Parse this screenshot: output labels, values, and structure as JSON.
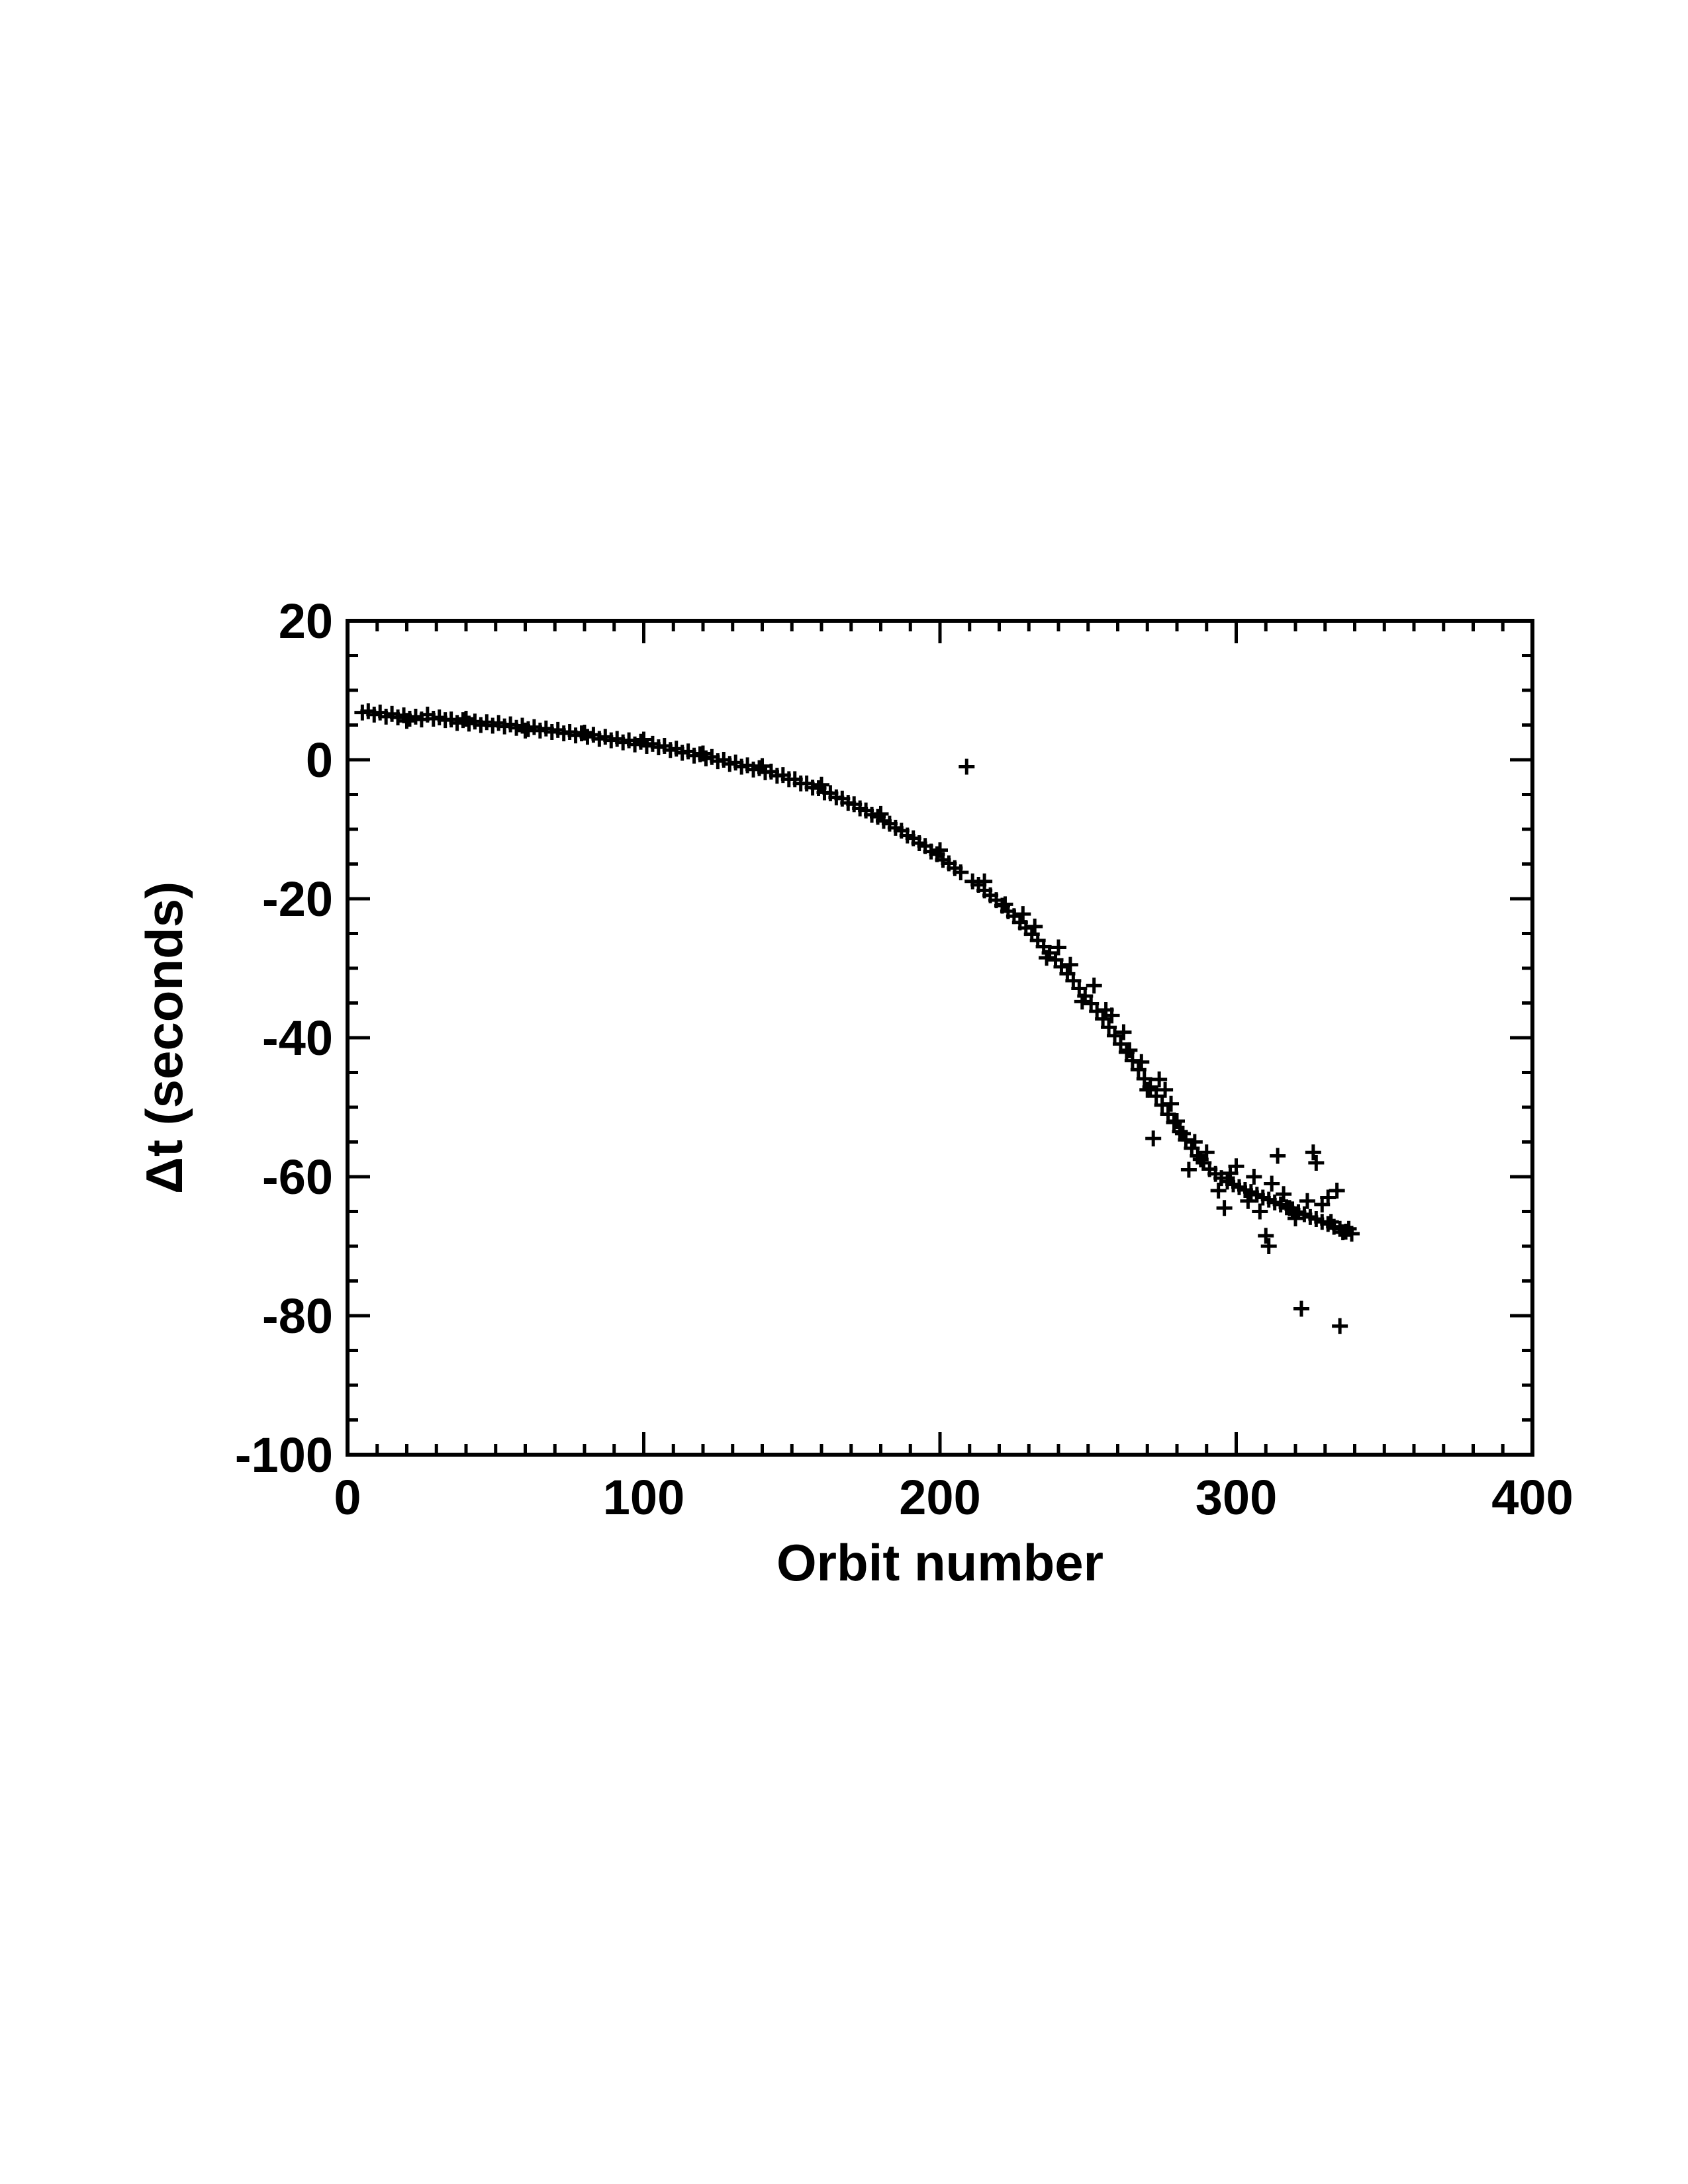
{
  "chart_data": {
    "type": "scatter",
    "title": "",
    "xlabel": "Orbit number",
    "ylabel": "Δt (seconds)",
    "xlim": [
      0,
      400
    ],
    "ylim": [
      -100,
      20
    ],
    "x_ticks": [
      0,
      100,
      200,
      300,
      400
    ],
    "x_tick_labels": [
      "0",
      "100",
      "200",
      "300",
      "400"
    ],
    "y_ticks": [
      20,
      0,
      -20,
      -40,
      -60,
      -80,
      -100
    ],
    "y_tick_labels": [
      "20",
      "0",
      "-20",
      "-40",
      "-60",
      "-80",
      "-100"
    ],
    "x_minor_step": 10,
    "y_minor_step": 5,
    "marker": "plus",
    "color": "#000000",
    "grid": false,
    "points": [
      [
        5,
        6.8
      ],
      [
        7,
        7.0
      ],
      [
        9,
        6.5
      ],
      [
        11,
        6.8
      ],
      [
        13,
        6.2
      ],
      [
        15,
        6.6
      ],
      [
        17,
        6.1
      ],
      [
        19,
        6.4
      ],
      [
        21,
        5.9
      ],
      [
        23,
        6.2
      ],
      [
        25,
        5.8
      ],
      [
        27,
        6.5
      ],
      [
        29,
        5.9
      ],
      [
        31,
        6.1
      ],
      [
        33,
        5.7
      ],
      [
        35,
        5.8
      ],
      [
        37,
        5.3
      ],
      [
        39,
        5.7
      ],
      [
        41,
        5.2
      ],
      [
        43,
        5.5
      ],
      [
        45,
        5.0
      ],
      [
        47,
        5.4
      ],
      [
        49,
        4.9
      ],
      [
        51,
        5.3
      ],
      [
        53,
        4.8
      ],
      [
        55,
        5.1
      ],
      [
        57,
        4.6
      ],
      [
        59,
        4.9
      ],
      [
        61,
        4.4
      ],
      [
        63,
        4.7
      ],
      [
        65,
        4.2
      ],
      [
        67,
        4.5
      ],
      [
        69,
        4.0
      ],
      [
        71,
        4.3
      ],
      [
        73,
        3.8
      ],
      [
        75,
        4.0
      ],
      [
        77,
        3.5
      ],
      [
        79,
        3.8
      ],
      [
        81,
        3.3
      ],
      [
        83,
        3.6
      ],
      [
        85,
        3.0
      ],
      [
        87,
        3.3
      ],
      [
        89,
        2.8
      ],
      [
        91,
        3.0
      ],
      [
        93,
        2.5
      ],
      [
        95,
        2.8
      ],
      [
        97,
        2.2
      ],
      [
        99,
        2.6
      ],
      [
        101,
        2.0
      ],
      [
        103,
        2.3
      ],
      [
        105,
        1.8
      ],
      [
        107,
        2.0
      ],
      [
        109,
        1.4
      ],
      [
        111,
        1.6
      ],
      [
        113,
        1.0
      ],
      [
        115,
        1.2
      ],
      [
        117,
        0.6
      ],
      [
        119,
        0.8
      ],
      [
        121,
        0.2
      ],
      [
        123,
        0.4
      ],
      [
        125,
        -0.2
      ],
      [
        127,
        0.0
      ],
      [
        129,
        -0.6
      ],
      [
        131,
        -0.4
      ],
      [
        133,
        -1.0
      ],
      [
        135,
        -0.8
      ],
      [
        137,
        -1.4
      ],
      [
        139,
        -1.2
      ],
      [
        141,
        -1.8
      ],
      [
        143,
        -1.7
      ],
      [
        145,
        -2.3
      ],
      [
        147,
        -2.2
      ],
      [
        149,
        -2.8
      ],
      [
        151,
        -2.8
      ],
      [
        153,
        -3.4
      ],
      [
        155,
        -3.4
      ],
      [
        157,
        -4.0
      ],
      [
        159,
        -4.1
      ],
      [
        161,
        -4.7
      ],
      [
        163,
        -4.8
      ],
      [
        165,
        -5.4
      ],
      [
        167,
        -5.6
      ],
      [
        169,
        -6.2
      ],
      [
        171,
        -6.4
      ],
      [
        173,
        -7.0
      ],
      [
        175,
        -7.3
      ],
      [
        177,
        -7.9
      ],
      [
        179,
        -8.2
      ],
      [
        181,
        -8.8
      ],
      [
        183,
        -9.2
      ],
      [
        185,
        -9.8
      ],
      [
        187,
        -10.2
      ],
      [
        189,
        -10.9
      ],
      [
        191,
        -11.3
      ],
      [
        193,
        -12.0
      ],
      [
        195,
        -12.4
      ],
      [
        197,
        -13.2
      ],
      [
        199,
        -13.6
      ],
      [
        201,
        -14.4
      ],
      [
        203,
        -14.9
      ],
      [
        205,
        -15.6
      ],
      [
        207,
        -16.2
      ],
      [
        209,
        -1.0
      ],
      [
        211,
        -17.5
      ],
      [
        213,
        -18.0
      ],
      [
        215,
        -18.8
      ],
      [
        217,
        -19.5
      ],
      [
        219,
        -20.2
      ],
      [
        221,
        -21.0
      ],
      [
        223,
        -21.8
      ],
      [
        225,
        -22.5
      ],
      [
        227,
        -23.4
      ],
      [
        229,
        -24.2
      ],
      [
        231,
        -25.1
      ],
      [
        233,
        -26.0
      ],
      [
        235,
        -26.9
      ],
      [
        237,
        -27.8
      ],
      [
        239,
        -28.8
      ],
      [
        241,
        -29.8
      ],
      [
        243,
        -30.8
      ],
      [
        245,
        -31.8
      ],
      [
        247,
        -32.9
      ],
      [
        249,
        -34.0
      ],
      [
        251,
        -35.1
      ],
      [
        253,
        -36.2
      ],
      [
        255,
        -37.3
      ],
      [
        257,
        -38.5
      ],
      [
        259,
        -39.7
      ],
      [
        261,
        -40.9
      ],
      [
        263,
        -42.1
      ],
      [
        265,
        -43.3
      ],
      [
        267,
        -44.6
      ],
      [
        269,
        -45.9
      ],
      [
        271,
        -47.1
      ],
      [
        273,
        -48.4
      ],
      [
        275,
        -49.7
      ],
      [
        277,
        -51.0
      ],
      [
        279,
        -52.2
      ],
      [
        281,
        -53.5
      ],
      [
        283,
        -54.7
      ],
      [
        285,
        -55.9
      ],
      [
        287,
        -57.0
      ],
      [
        289,
        -58.0
      ],
      [
        291,
        -58.9
      ],
      [
        293,
        -59.6
      ],
      [
        295,
        -60.2
      ],
      [
        297,
        -60.7
      ],
      [
        299,
        -61.1
      ],
      [
        301,
        -61.5
      ],
      [
        303,
        -61.9
      ],
      [
        305,
        -62.2
      ],
      [
        307,
        -62.6
      ],
      [
        309,
        -63.0
      ],
      [
        311,
        -63.3
      ],
      [
        313,
        -63.7
      ],
      [
        315,
        -64.0
      ],
      [
        317,
        -64.4
      ],
      [
        319,
        -64.7
      ],
      [
        321,
        -65.1
      ],
      [
        323,
        -65.4
      ],
      [
        325,
        -65.8
      ],
      [
        327,
        -66.1
      ],
      [
        329,
        -66.5
      ],
      [
        331,
        -66.8
      ],
      [
        333,
        -67.2
      ],
      [
        335,
        -67.5
      ],
      [
        337,
        -67.9
      ],
      [
        339,
        -68.2
      ],
      [
        20,
        5.6
      ],
      [
        40,
        5.9
      ],
      [
        60,
        4.2
      ],
      [
        80,
        3.9
      ],
      [
        100,
        2.9
      ],
      [
        120,
        0.9
      ],
      [
        140,
        -0.9
      ],
      [
        160,
        -3.6
      ],
      [
        180,
        -7.8
      ],
      [
        200,
        -13.0
      ],
      [
        215,
        -17.5
      ],
      [
        222,
        -20.8
      ],
      [
        228,
        -22.2
      ],
      [
        232,
        -24.0
      ],
      [
        236,
        -28.5
      ],
      [
        240,
        -27.0
      ],
      [
        244,
        -29.5
      ],
      [
        248,
        -34.8
      ],
      [
        252,
        -32.5
      ],
      [
        256,
        -36.0
      ],
      [
        258,
        -36.8
      ],
      [
        262,
        -39.2
      ],
      [
        264,
        -41.8
      ],
      [
        268,
        -43.5
      ],
      [
        270,
        -47.5
      ],
      [
        272,
        -54.5
      ],
      [
        274,
        -46.0
      ],
      [
        276,
        -47.5
      ],
      [
        278,
        -49.5
      ],
      [
        280,
        -52.0
      ],
      [
        282,
        -53.8
      ],
      [
        284,
        -59.0
      ],
      [
        286,
        -55.0
      ],
      [
        288,
        -57.5
      ],
      [
        290,
        -56.5
      ],
      [
        294,
        -62.0
      ],
      [
        296,
        -64.5
      ],
      [
        298,
        -59.5
      ],
      [
        300,
        -58.5
      ],
      [
        304,
        -63.5
      ],
      [
        306,
        -60.0
      ],
      [
        308,
        -65.0
      ],
      [
        310,
        -68.5
      ],
      [
        311,
        -70.0
      ],
      [
        312,
        -61.0
      ],
      [
        314,
        -57.0
      ],
      [
        316,
        -62.5
      ],
      [
        318,
        -64.5
      ],
      [
        320,
        -66.0
      ],
      [
        322,
        -79.0
      ],
      [
        324,
        -63.5
      ],
      [
        326,
        -56.5
      ],
      [
        327,
        -58.0
      ],
      [
        329,
        -64.0
      ],
      [
        331,
        -63.0
      ],
      [
        332,
        -66.5
      ],
      [
        334,
        -62.0
      ],
      [
        335,
        -81.5
      ],
      [
        336,
        -68.0
      ],
      [
        338,
        -67.5
      ]
    ]
  }
}
